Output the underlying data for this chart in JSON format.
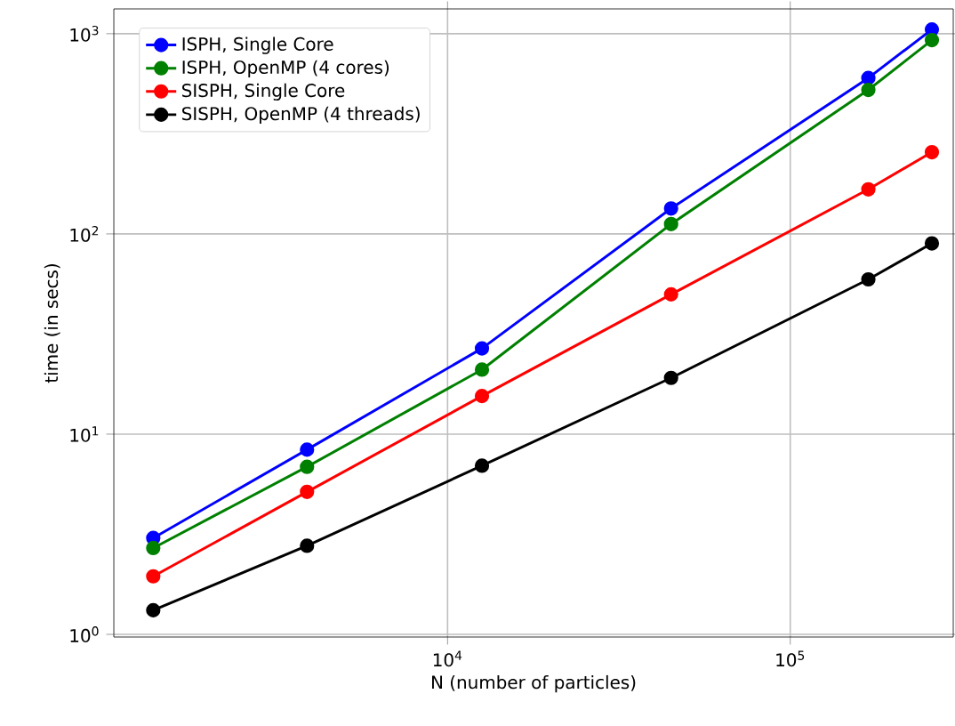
{
  "chart_data": {
    "type": "line",
    "xlabel": "N (number of particles)",
    "ylabel": "time (in secs)",
    "log": "xy",
    "grid": true,
    "legend": "top left",
    "marker": "circle",
    "xlim": [
      1062,
      299000
    ],
    "ylim": [
      0.97,
      1330
    ],
    "xticks": [
      {
        "value": 10000,
        "label": "10$^{4}$"
      },
      {
        "value": 100000,
        "label": "10$^{5}$"
      }
    ],
    "yticks": [
      {
        "value": 1,
        "label": "10$^{0}$"
      },
      {
        "value": 10,
        "label": "10$^{1}$"
      },
      {
        "value": 100,
        "label": "10$^{2}$"
      },
      {
        "value": 1000,
        "label": "10$^{3}$"
      }
    ],
    "x": [
      1384,
      3890,
      12600,
      44900,
      169000,
      259000
    ],
    "series": [
      {
        "name": "ISPH, Single Core",
        "color": "#0000ff",
        "values": [
          3.03,
          8.37,
          26.8,
          134,
          601,
          1050
        ]
      },
      {
        "name": "ISPH, OpenMP (4 cores)",
        "color": "#008000",
        "values": [
          2.7,
          6.87,
          21.0,
          112,
          524,
          929
        ]
      },
      {
        "name": "SISPH, Single Core",
        "color": "#ff0000",
        "values": [
          1.95,
          5.15,
          15.5,
          49.9,
          167,
          256
        ]
      },
      {
        "name": "SISPH, OpenMP (4 threads)",
        "color": "#000000",
        "values": [
          1.32,
          2.77,
          6.96,
          19.1,
          59.3,
          89.7
        ]
      }
    ]
  }
}
